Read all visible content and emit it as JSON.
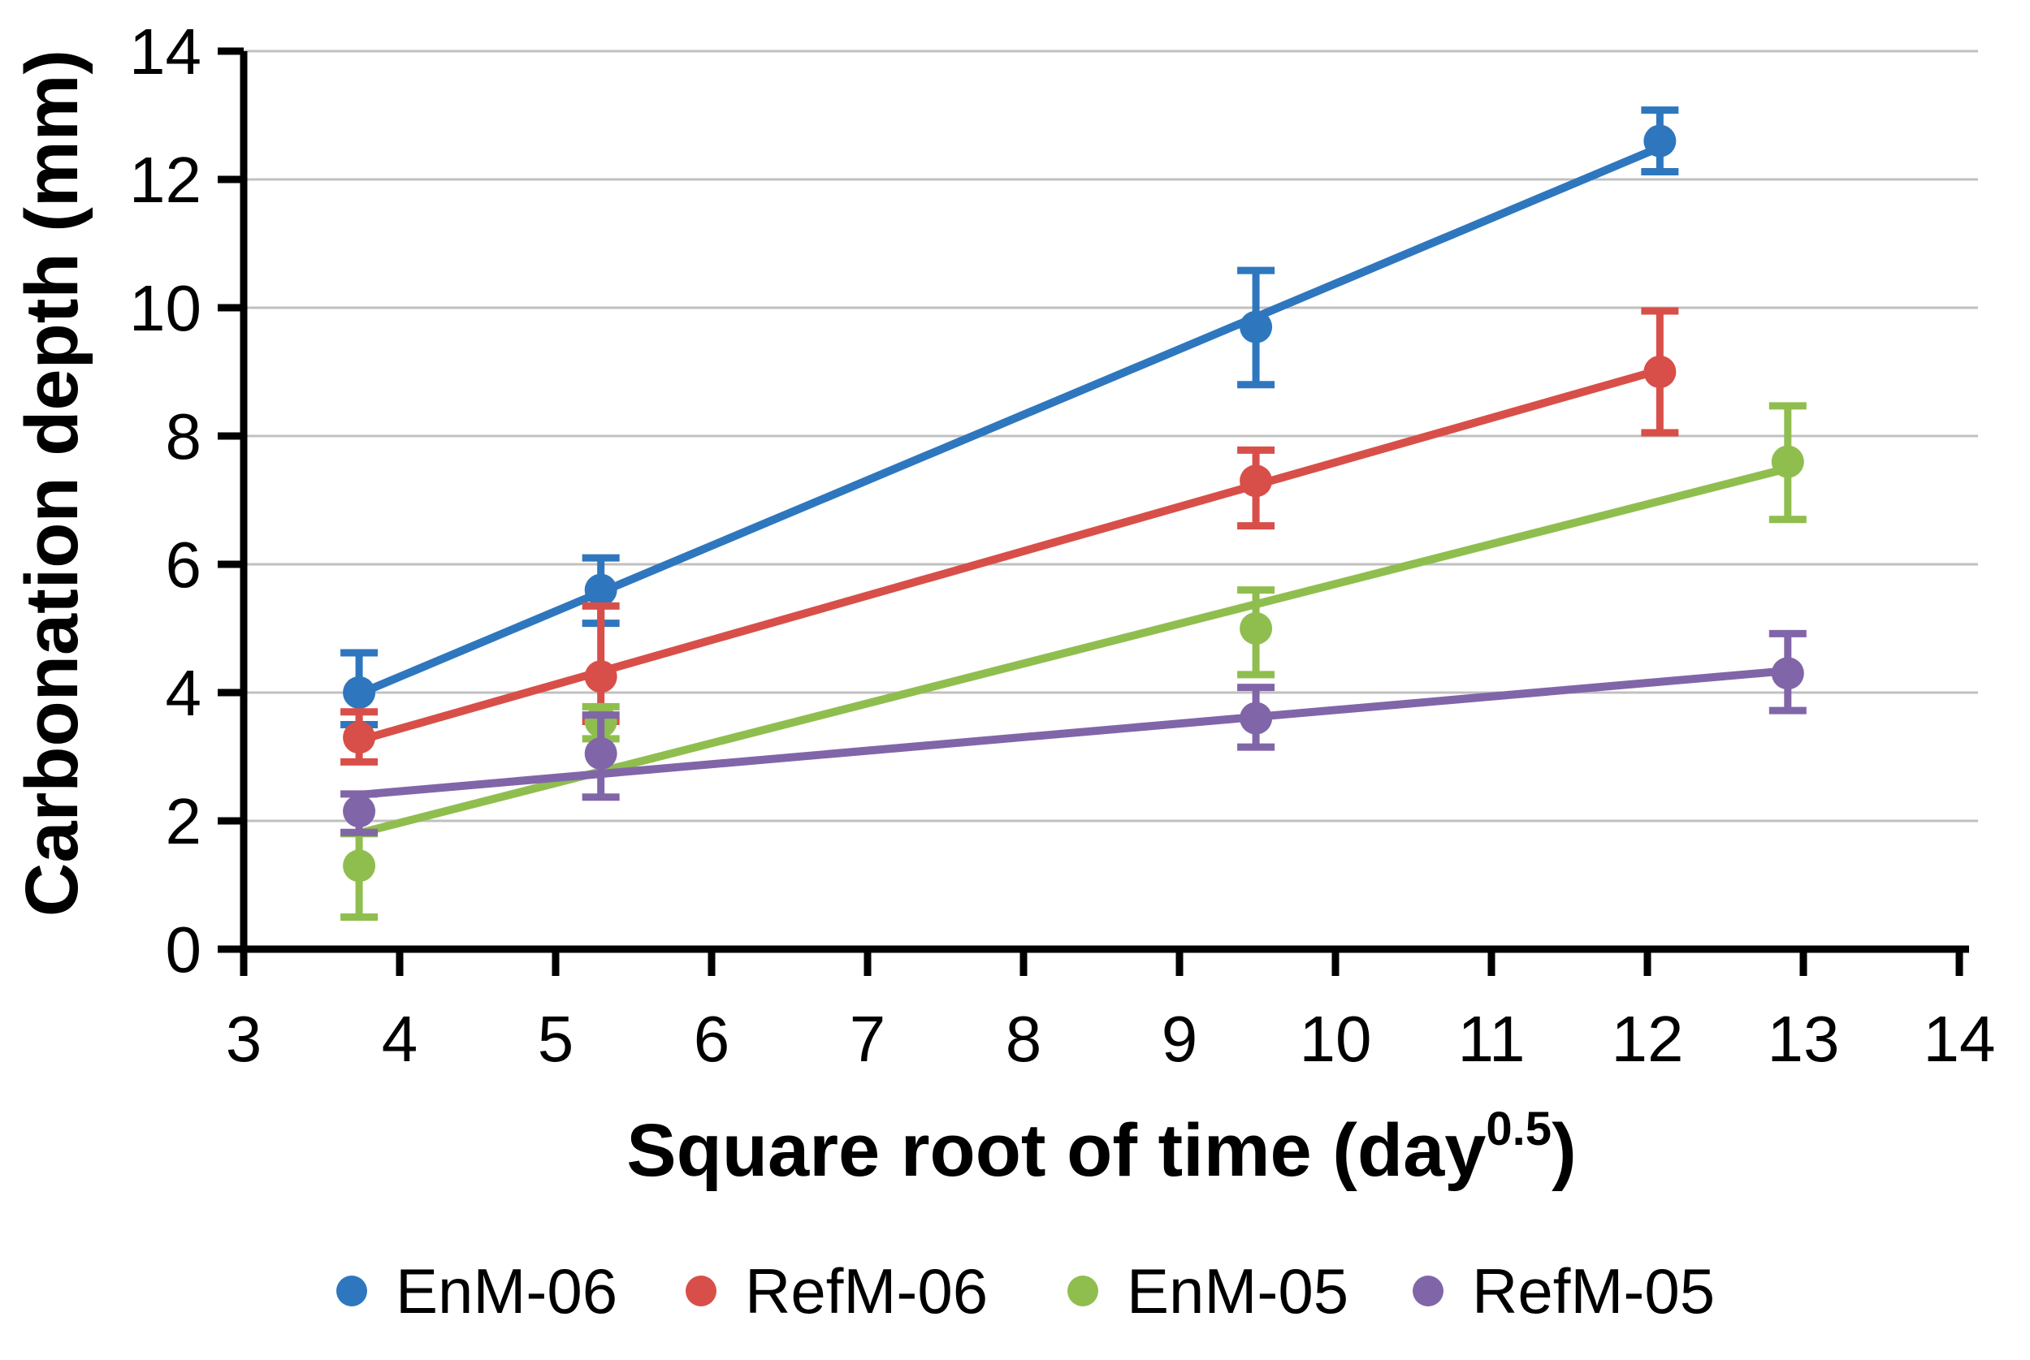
{
  "figure": {
    "description": "Scatter chart with linear trendlines and error bars showing carbonation depth versus square root of exposure time for four mortar mixes"
  },
  "chart_data": {
    "type": "scatter",
    "title": "",
    "xlabel_main": "Square root of time (day",
    "xlabel_superscript": "0.5",
    "xlabel_close": ")",
    "ylabel": "Carbonation depth (mm)",
    "xlim": [
      3,
      14
    ],
    "ylim": [
      0,
      14
    ],
    "x_ticks": [
      3,
      4,
      5,
      6,
      7,
      8,
      9,
      10,
      11,
      12,
      13,
      14
    ],
    "y_ticks": [
      0,
      2,
      4,
      6,
      8,
      10,
      12,
      14
    ],
    "grid": "horizontal-only",
    "axis_color": "#000000",
    "grid_color": "#C0C0C0",
    "legend_position": "bottom",
    "marker_shape": "circle",
    "trendline": "linear-least-squares",
    "series": [
      {
        "name": "EnM-06",
        "color": "#2E77BE",
        "x": [
          3.74,
          5.29,
          9.49,
          12.08
        ],
        "y": [
          4.0,
          5.6,
          9.7,
          12.6
        ],
        "err_up": [
          0.62,
          0.5,
          0.88,
          0.48
        ],
        "err_down": [
          0.5,
          0.52,
          0.9,
          0.48
        ]
      },
      {
        "name": "RefM-06",
        "color": "#D84F49",
        "x": [
          3.74,
          5.29,
          9.49,
          12.08
        ],
        "y": [
          3.3,
          4.25,
          7.3,
          9.0
        ],
        "err_up": [
          0.4,
          1.1,
          0.48,
          0.95
        ],
        "err_down": [
          0.38,
          0.7,
          0.7,
          0.95
        ]
      },
      {
        "name": "EnM-05",
        "color": "#8FBE4F",
        "x": [
          3.74,
          5.29,
          9.49,
          12.9
        ],
        "y": [
          1.3,
          3.55,
          5.0,
          7.6
        ],
        "err_up": [
          0.5,
          0.23,
          0.6,
          0.87
        ],
        "err_down": [
          0.8,
          0.27,
          0.72,
          0.9
        ]
      },
      {
        "name": "RefM-05",
        "color": "#8066A8",
        "x": [
          3.74,
          5.29,
          9.49,
          12.9
        ],
        "y": [
          2.15,
          3.05,
          3.6,
          4.3
        ],
        "err_up": [
          0.27,
          0.6,
          0.48,
          0.62
        ],
        "err_down": [
          0.33,
          0.68,
          0.45,
          0.58
        ]
      }
    ]
  }
}
